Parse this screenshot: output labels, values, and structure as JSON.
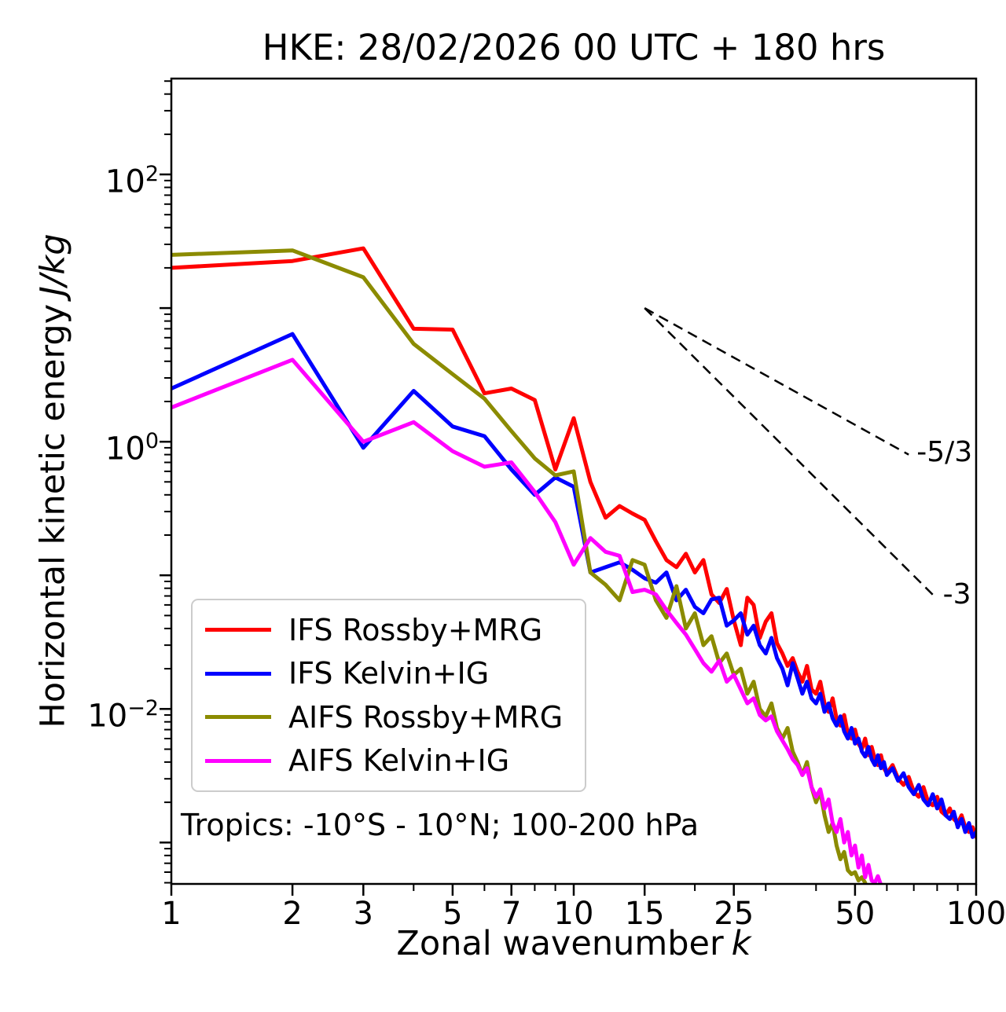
{
  "chart_data": {
    "type": "line",
    "title": "HKE: 28/02/2026 00 UTC + 180 hrs",
    "xlabel_text": "Zonal wavenumber",
    "xlabel_math": "k",
    "ylabel_text": "Horizontal kinetic energy",
    "ylabel_math": "J/kg",
    "annotation": "Tropics: -10°S - 10°N; 100-200 hPa",
    "x_scale": "log",
    "y_scale": "log",
    "xlim": [
      1,
      100
    ],
    "ylim": [
      0.00049,
      522
    ],
    "grid": false,
    "legend_position": "lower left",
    "x_ticks": [
      {
        "v": 1,
        "label": "1"
      },
      {
        "v": 2,
        "label": "2"
      },
      {
        "v": 3,
        "label": "3"
      },
      {
        "v": 5,
        "label": "5"
      },
      {
        "v": 7,
        "label": "7"
      },
      {
        "v": 10,
        "label": "10"
      },
      {
        "v": 15,
        "label": "15"
      },
      {
        "v": 25,
        "label": "25"
      },
      {
        "v": 50,
        "label": "50"
      },
      {
        "v": 100,
        "label": "100"
      }
    ],
    "x_minor_ticks": [
      4,
      6,
      8,
      9,
      20,
      30,
      40,
      60,
      70,
      80,
      90
    ],
    "y_ticks": [
      {
        "v": 100,
        "base": "10",
        "exp": "2"
      },
      {
        "v": 1,
        "base": "10",
        "exp": "0"
      },
      {
        "v": 0.01,
        "base": "10",
        "exp": "−2"
      }
    ],
    "reference_lines": [
      {
        "label": "-5/3",
        "slope": -1.667,
        "x": [
          15,
          68
        ],
        "y": [
          10,
          0.8
        ]
      },
      {
        "label": "-3",
        "slope": -3.0,
        "x": [
          15,
          79
        ],
        "y": [
          10,
          0.069
        ]
      }
    ],
    "series": [
      {
        "name": "IFS Rossby+MRG",
        "color": "#ff0000",
        "k": [
          1,
          2,
          3,
          4,
          5,
          6,
          7,
          8,
          9,
          10,
          11,
          12,
          13,
          14,
          15,
          16,
          17,
          18,
          19,
          20,
          21,
          22,
          23,
          24,
          25,
          26,
          27,
          28,
          29,
          30,
          31,
          32,
          33,
          34,
          35,
          36,
          37,
          38,
          39,
          40,
          41,
          42,
          43,
          44,
          45,
          46,
          47,
          48,
          49,
          50,
          51,
          52,
          53,
          54,
          55,
          56,
          57,
          58,
          59,
          60,
          62,
          64,
          66,
          68,
          70,
          72,
          74,
          76,
          78,
          80,
          82,
          84,
          86,
          88,
          90,
          92,
          94,
          96,
          98,
          100
        ],
        "values": [
          20,
          22.5,
          28,
          7.0,
          6.9,
          2.3,
          2.5,
          2.05,
          0.62,
          1.5,
          0.5,
          0.27,
          0.33,
          0.29,
          0.26,
          0.18,
          0.13,
          0.115,
          0.145,
          0.105,
          0.13,
          0.072,
          0.062,
          0.079,
          0.046,
          0.03,
          0.068,
          0.06,
          0.034,
          0.045,
          0.052,
          0.031,
          0.026,
          0.021,
          0.024,
          0.019,
          0.016,
          0.021,
          0.014,
          0.013,
          0.016,
          0.011,
          0.0095,
          0.012,
          0.0085,
          0.0075,
          0.009,
          0.0065,
          0.006,
          0.007,
          0.0055,
          0.005,
          0.006,
          0.0045,
          0.0052,
          0.0042,
          0.0038,
          0.0045,
          0.0036,
          0.0033,
          0.0038,
          0.003,
          0.0027,
          0.0031,
          0.0024,
          0.0022,
          0.0026,
          0.002,
          0.0019,
          0.0022,
          0.0017,
          0.0016,
          0.0018,
          0.0015,
          0.0014,
          0.0016,
          0.0013,
          0.0012,
          0.0013,
          0.0011
        ]
      },
      {
        "name": "IFS Kelvin+IG",
        "color": "#0000ff",
        "k": [
          1,
          2,
          3,
          4,
          5,
          6,
          7,
          8,
          9,
          10,
          11,
          12,
          13,
          14,
          15,
          16,
          17,
          18,
          19,
          20,
          21,
          22,
          23,
          24,
          25,
          26,
          27,
          28,
          29,
          30,
          31,
          32,
          33,
          34,
          35,
          36,
          37,
          38,
          39,
          40,
          41,
          42,
          43,
          44,
          45,
          46,
          47,
          48,
          49,
          50,
          51,
          52,
          53,
          54,
          55,
          56,
          57,
          58,
          59,
          60,
          62,
          64,
          66,
          68,
          70,
          72,
          74,
          76,
          78,
          80,
          82,
          84,
          86,
          88,
          90,
          92,
          94,
          96,
          98,
          100
        ],
        "values": [
          2.5,
          6.4,
          0.9,
          2.4,
          1.3,
          1.1,
          0.62,
          0.4,
          0.54,
          0.46,
          0.105,
          0.115,
          0.125,
          0.11,
          0.095,
          0.088,
          0.105,
          0.065,
          0.078,
          0.058,
          0.052,
          0.066,
          0.068,
          0.042,
          0.046,
          0.052,
          0.036,
          0.042,
          0.03,
          0.026,
          0.034,
          0.024,
          0.02,
          0.015,
          0.022,
          0.017,
          0.013,
          0.016,
          0.012,
          0.011,
          0.013,
          0.0095,
          0.011,
          0.0085,
          0.0075,
          0.0088,
          0.0068,
          0.006,
          0.0072,
          0.0055,
          0.006,
          0.0048,
          0.0044,
          0.0052,
          0.0042,
          0.0038,
          0.0045,
          0.0036,
          0.004,
          0.0032,
          0.0036,
          0.0029,
          0.0033,
          0.0026,
          0.0023,
          0.0027,
          0.0021,
          0.0019,
          0.0023,
          0.0018,
          0.0021,
          0.0016,
          0.0015,
          0.0017,
          0.0013,
          0.0015,
          0.0012,
          0.0014,
          0.0011,
          0.0012
        ]
      },
      {
        "name": "AIFS Rossby+MRG",
        "color": "#8b8b00",
        "k": [
          1,
          2,
          3,
          4,
          5,
          6,
          7,
          8,
          9,
          10,
          11,
          12,
          13,
          14,
          15,
          16,
          17,
          18,
          19,
          20,
          21,
          22,
          23,
          24,
          25,
          26,
          27,
          28,
          29,
          30,
          31,
          32,
          33,
          34,
          35,
          36,
          37,
          38,
          39,
          40,
          41,
          42,
          43,
          44,
          45,
          46,
          47,
          48,
          49,
          50,
          51,
          52,
          53
        ],
        "values": [
          25,
          27,
          17,
          5.4,
          3.2,
          2.1,
          1.2,
          0.75,
          0.56,
          0.6,
          0.105,
          0.085,
          0.065,
          0.13,
          0.12,
          0.065,
          0.048,
          0.083,
          0.04,
          0.052,
          0.03,
          0.035,
          0.022,
          0.026,
          0.018,
          0.02,
          0.013,
          0.016,
          0.01,
          0.0088,
          0.011,
          0.0072,
          0.006,
          0.0072,
          0.0048,
          0.004,
          0.0032,
          0.004,
          0.0026,
          0.002,
          0.0024,
          0.0016,
          0.0012,
          0.0014,
          0.00095,
          0.00075,
          0.00085,
          0.00062,
          0.00058,
          0.0006,
          0.00052,
          0.00055,
          0.0005
        ]
      },
      {
        "name": "AIFS Kelvin+IG",
        "color": "#ff00ff",
        "k": [
          1,
          2,
          3,
          4,
          5,
          6,
          7,
          8,
          9,
          10,
          11,
          12,
          13,
          14,
          15,
          16,
          17,
          18,
          19,
          20,
          21,
          22,
          23,
          24,
          25,
          26,
          27,
          28,
          29,
          30,
          31,
          32,
          33,
          34,
          35,
          36,
          37,
          38,
          39,
          40,
          41,
          42,
          43,
          44,
          45,
          46,
          47,
          48,
          49,
          50,
          51,
          52,
          53,
          54,
          55,
          56,
          57,
          58
        ],
        "values": [
          1.8,
          4.1,
          1.0,
          1.4,
          0.85,
          0.65,
          0.7,
          0.42,
          0.25,
          0.12,
          0.19,
          0.15,
          0.14,
          0.075,
          0.078,
          0.072,
          0.055,
          0.044,
          0.036,
          0.028,
          0.022,
          0.019,
          0.023,
          0.016,
          0.018,
          0.014,
          0.011,
          0.012,
          0.009,
          0.0082,
          0.0088,
          0.0068,
          0.0058,
          0.005,
          0.0042,
          0.0038,
          0.0032,
          0.0036,
          0.0026,
          0.0022,
          0.0025,
          0.0018,
          0.0021,
          0.0014,
          0.0012,
          0.0015,
          0.001,
          0.0012,
          0.0008,
          0.00095,
          0.00065,
          0.0008,
          0.00055,
          0.00068,
          0.00052,
          0.0005,
          0.00056,
          0.00048
        ]
      }
    ]
  }
}
